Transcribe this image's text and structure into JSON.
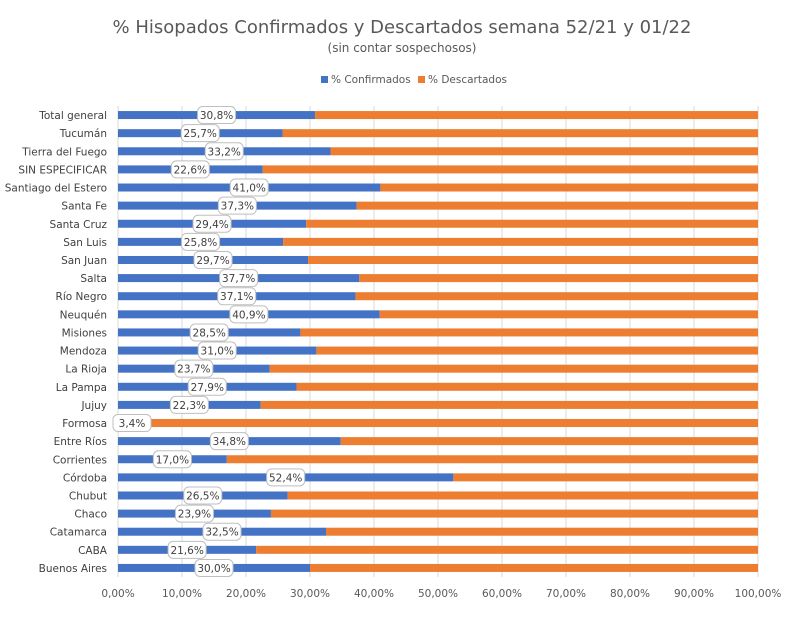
{
  "chart_data": {
    "type": "bar",
    "orientation": "horizontal",
    "stacked": "percent",
    "title": "% Hisopados Confirmados y Descartados semana 52/21 y 01/22",
    "subtitle": "(sin contar sospechosos)",
    "categories": [
      "Total general",
      "Tucumán",
      "Tierra del Fuego",
      "SIN ESPECIFICAR",
      "Santiago del Estero",
      "Santa Fe",
      "Santa Cruz",
      "San Luis",
      "San Juan",
      "Salta",
      "Río Negro",
      "Neuquén",
      "Misiones",
      "Mendoza",
      "La Rioja",
      "La Pampa",
      "Jujuy",
      "Formosa",
      "Entre Ríos",
      "Corrientes",
      "Córdoba",
      "Chubut",
      "Chaco",
      "Catamarca",
      "CABA",
      "Buenos Aires"
    ],
    "series": [
      {
        "name": "% Confirmados",
        "color": "#4472C4",
        "values": [
          30.8,
          25.7,
          33.2,
          22.6,
          41.0,
          37.3,
          29.4,
          25.8,
          29.7,
          37.7,
          37.1,
          40.9,
          28.5,
          31.0,
          23.7,
          27.9,
          22.3,
          3.4,
          34.8,
          17.0,
          52.4,
          26.5,
          23.9,
          32.5,
          21.6,
          30.0
        ]
      },
      {
        "name": "% Descartados",
        "color": "#ED7D31",
        "values": [
          69.2,
          74.3,
          66.8,
          77.4,
          59.0,
          62.7,
          70.6,
          74.2,
          70.3,
          62.3,
          62.9,
          59.1,
          71.5,
          69.0,
          76.3,
          72.1,
          77.7,
          96.6,
          65.2,
          83.0,
          47.6,
          73.5,
          76.1,
          67.5,
          78.4,
          70.0
        ]
      }
    ],
    "data_labels": [
      "30,8%",
      "25,7%",
      "33,2%",
      "22,6%",
      "41,0%",
      "37,3%",
      "29,4%",
      "25,8%",
      "29,7%",
      "37,7%",
      "37,1%",
      "40,9%",
      "28,5%",
      "31,0%",
      "23,7%",
      "27,9%",
      "22,3%",
      "3,4%",
      "34,8%",
      "17,0%",
      "52,4%",
      "26,5%",
      "23,9%",
      "32,5%",
      "21,6%",
      "30,0%"
    ],
    "xlim": [
      0,
      100
    ],
    "x_ticks": [
      0,
      10,
      20,
      30,
      40,
      50,
      60,
      70,
      80,
      90,
      100
    ],
    "x_tick_labels": [
      "0,00%",
      "10,00%",
      "20,00%",
      "30,00%",
      "40,00%",
      "50,00%",
      "60,00%",
      "70,00%",
      "80,00%",
      "90,00%",
      "100,00%"
    ],
    "legend_position": "top",
    "grid": true,
    "colors": {
      "grid": "#D9D9D9",
      "label_box_border": "#BFBFBF"
    }
  }
}
